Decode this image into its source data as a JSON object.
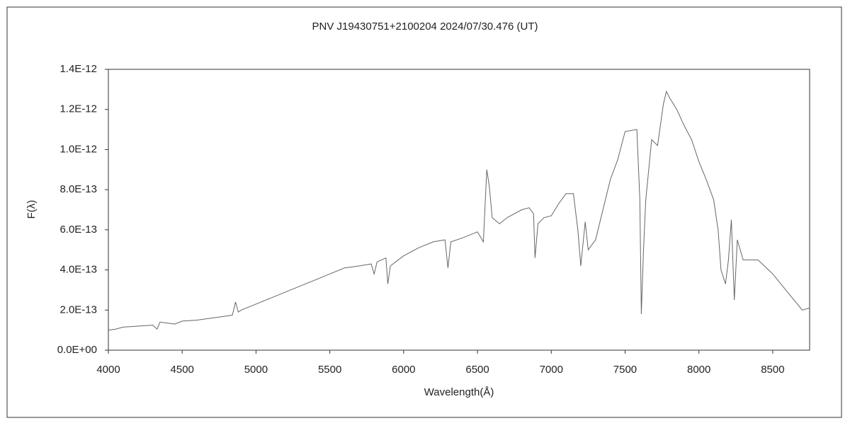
{
  "chart_data": {
    "type": "line",
    "title": "PNV J19430751+2100204    2024/07/30.476 (UT)",
    "x_label": "Wavelength(Å)",
    "y_label": "F(λ)",
    "x": [
      4000,
      4050,
      4100,
      4200,
      4300,
      4330,
      4350,
      4400,
      4450,
      4500,
      4600,
      4700,
      4800,
      4840,
      4861,
      4880,
      4900,
      5000,
      5100,
      5200,
      5300,
      5400,
      5500,
      5600,
      5700,
      5780,
      5800,
      5820,
      5880,
      5893,
      5910,
      6000,
      6100,
      6200,
      6280,
      6300,
      6320,
      6400,
      6500,
      6540,
      6563,
      6580,
      6600,
      6650,
      6700,
      6800,
      6850,
      6880,
      6890,
      6910,
      6950,
      7000,
      7050,
      7100,
      7150,
      7180,
      7200,
      7230,
      7250,
      7300,
      7350,
      7400,
      7450,
      7500,
      7580,
      7600,
      7610,
      7625,
      7640,
      7680,
      7720,
      7760,
      7780,
      7800,
      7850,
      7900,
      7950,
      8000,
      8050,
      8100,
      8130,
      8150,
      8180,
      8200,
      8220,
      8240,
      8260,
      8300,
      8400,
      8500,
      8600,
      8700,
      8750
    ],
    "series": [
      {
        "name": "F(λ)",
        "color": "#666666",
        "values": [
          1e-13,
          1.05e-13,
          1.15e-13,
          1.2e-13,
          1.25e-13,
          1.05e-13,
          1.4e-13,
          1.35e-13,
          1.3e-13,
          1.45e-13,
          1.5e-13,
          1.6e-13,
          1.7e-13,
          1.75e-13,
          2.4e-13,
          1.9e-13,
          2e-13,
          2.3e-13,
          2.6e-13,
          2.9e-13,
          3.2e-13,
          3.5e-13,
          3.8e-13,
          4.1e-13,
          4.2e-13,
          4.3e-13,
          3.8e-13,
          4.4e-13,
          4.6e-13,
          3.3e-13,
          4.2e-13,
          4.7e-13,
          5.1e-13,
          5.4e-13,
          5.5e-13,
          4.1e-13,
          5.4e-13,
          5.6e-13,
          5.9e-13,
          5.4e-13,
          9e-13,
          8.2e-13,
          6.6e-13,
          6.3e-13,
          6.6e-13,
          7e-13,
          7.1e-13,
          6.8e-13,
          4.6e-13,
          6.3e-13,
          6.6e-13,
          6.7e-13,
          7.3e-13,
          7.8e-13,
          7.8e-13,
          6e-13,
          4.2e-13,
          6.4e-13,
          5e-13,
          5.5e-13,
          7e-13,
          8.5e-13,
          9.5e-13,
          1.09e-12,
          1.1e-12,
          7.5e-13,
          1.8e-13,
          5e-13,
          7.5e-13,
          1.05e-12,
          1.02e-12,
          1.23e-12,
          1.29e-12,
          1.26e-12,
          1.2e-12,
          1.12e-12,
          1.05e-12,
          9.4e-13,
          8.5e-13,
          7.5e-13,
          6e-13,
          4e-13,
          3.3e-13,
          4.5e-13,
          6.5e-13,
          2.5e-13,
          5.5e-13,
          4.5e-13,
          4.5e-13,
          3.8e-13,
          2.9e-13,
          2e-13,
          2.1e-13
        ]
      }
    ],
    "xlim": [
      4000,
      8750
    ],
    "xticks": [
      4000,
      4500,
      5000,
      5500,
      6000,
      6500,
      7000,
      7500,
      8000,
      8500
    ],
    "ylim": [
      0,
      1.4e-12
    ],
    "yticks": [
      {
        "value": 0,
        "label": "0.0E+00"
      },
      {
        "value": 2e-13,
        "label": "2.0E-13"
      },
      {
        "value": 4e-13,
        "label": "4.0E-13"
      },
      {
        "value": 6e-13,
        "label": "6.0E-13"
      },
      {
        "value": 8e-13,
        "label": "8.0E-13"
      },
      {
        "value": 1e-12,
        "label": "1.0E-12"
      },
      {
        "value": 1.2e-12,
        "label": "1.2E-12"
      },
      {
        "value": 1.4e-12,
        "label": "1.4E-12"
      }
    ],
    "grid": false
  }
}
